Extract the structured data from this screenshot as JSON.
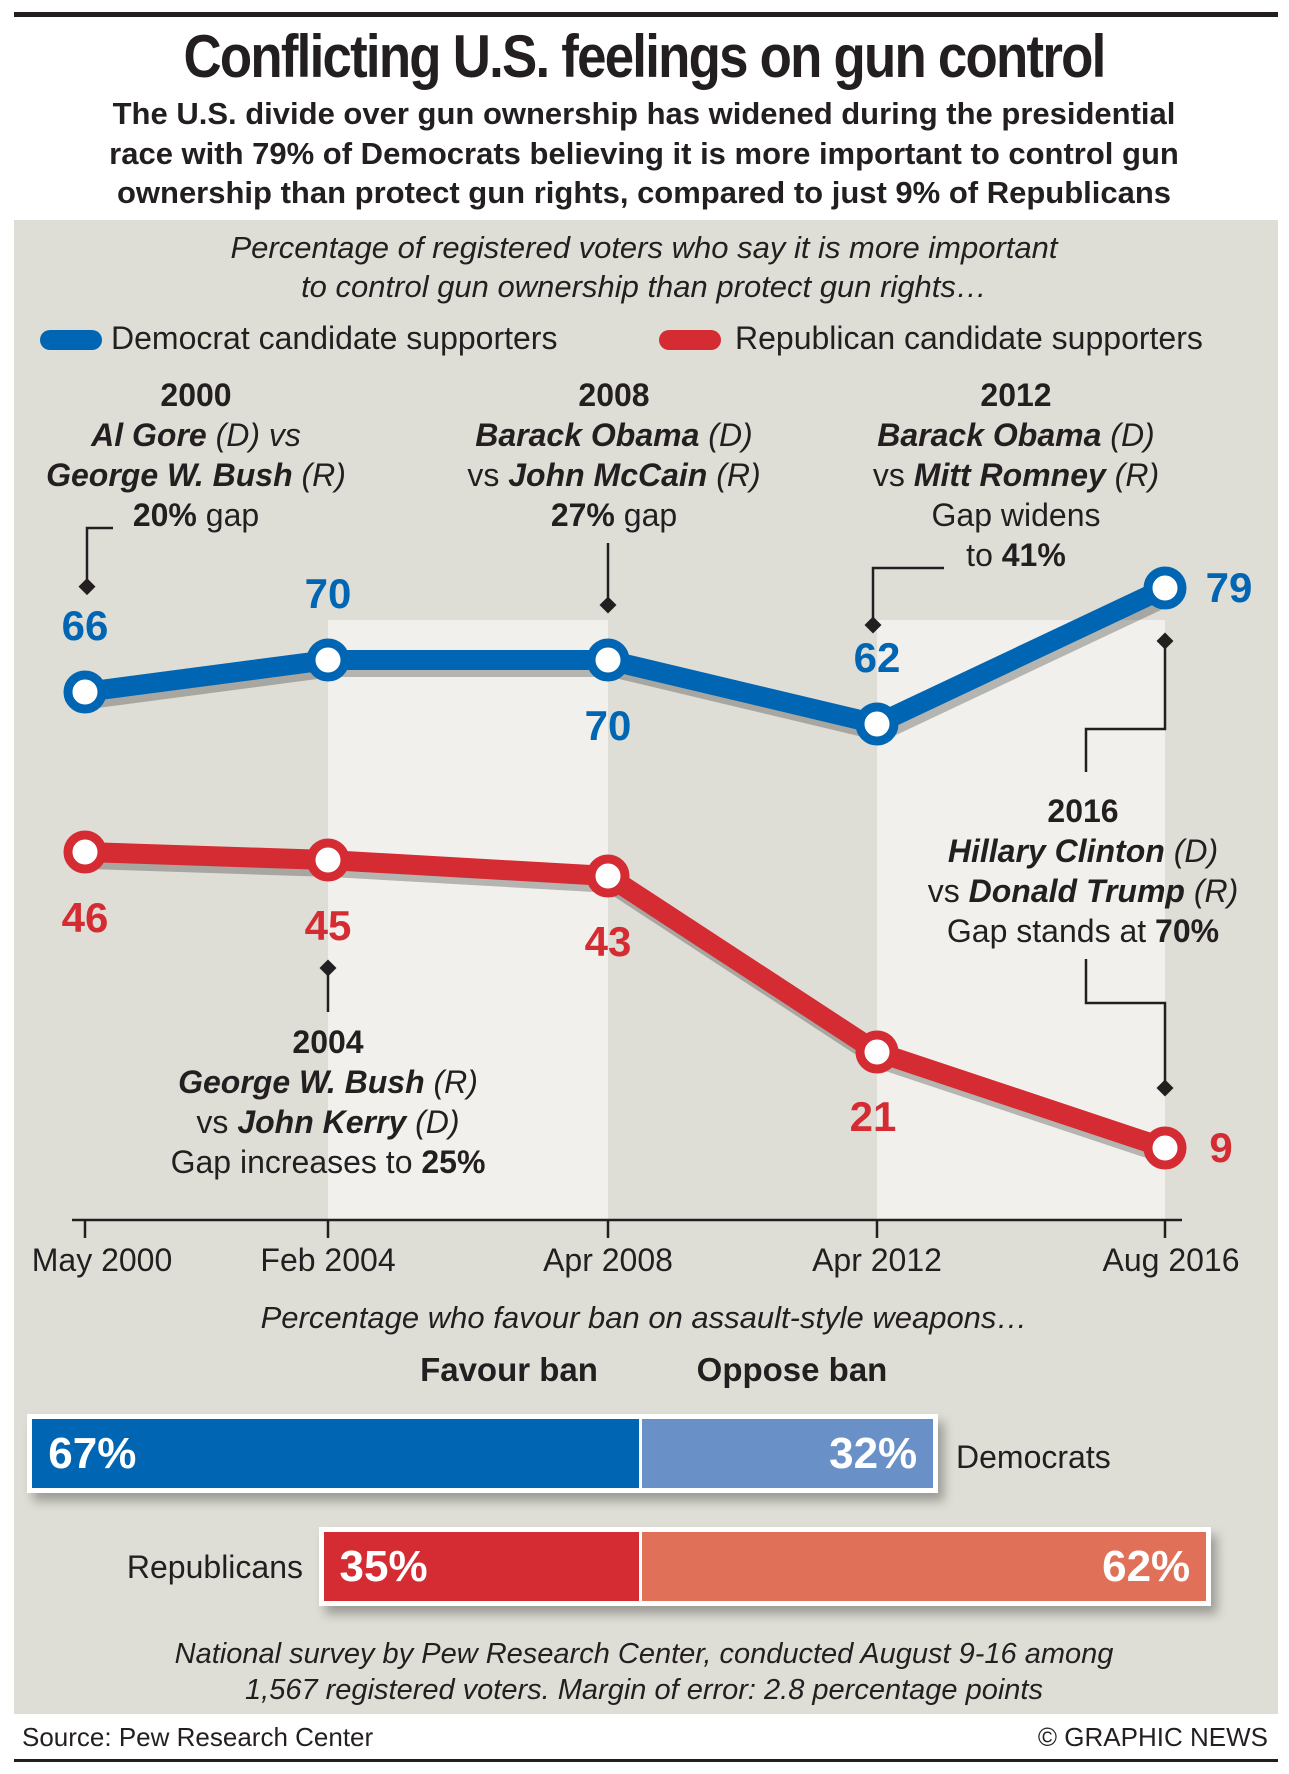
{
  "header": {
    "title": "Conflicting U.S. feelings on gun control",
    "subtitle_lines": [
      "The U.S. divide over gun ownership has widened during the presidential",
      "race with 79% of Democrats believing it is more important to control gun",
      "ownership than protect gun rights, compared to just 9% of Republicans"
    ]
  },
  "chart_data": [
    {
      "type": "line",
      "subtitle_lines": [
        "Percentage of registered voters who say it is more important",
        "to control gun ownership than protect gun rights…"
      ],
      "categories": [
        "May 2000",
        "Feb 2004",
        "Apr 2008",
        "Apr 2012",
        "Aug 2016"
      ],
      "ylim": [
        0,
        100
      ],
      "grid": false,
      "legend_position": "top",
      "series": [
        {
          "name": "Democrat candidate supporters",
          "color": "#0066b3",
          "values": [
            66,
            70,
            70,
            62,
            79
          ],
          "labels": [
            "66",
            "70",
            "70",
            "62",
            "79"
          ]
        },
        {
          "name": "Republican candidate supporters",
          "color": "#d52b32",
          "values": [
            46,
            45,
            43,
            21,
            9
          ],
          "labels": [
            "46",
            "45",
            "43",
            "21",
            "9"
          ]
        }
      ],
      "annotations": [
        {
          "year": "2000",
          "l1": "Al Gore",
          "l1b": " (D) vs",
          "l2": "George W. Bush",
          "l2b": " (R)",
          "l3": "20%",
          "l3b": " gap"
        },
        {
          "year": "2008",
          "l1": "Barack Obama",
          "l1b": " (D)",
          "l2a": "vs ",
          "l2": "John McCain",
          "l2b": " (R)",
          "l3": "27%",
          "l3b": " gap"
        },
        {
          "year": "2012",
          "l1": "Barack Obama",
          "l1b": " (D)",
          "l2a": "vs ",
          "l2": "Mitt Romney",
          "l2b": " (R)",
          "l3a": "Gap widens",
          "l4a": "to ",
          "l4": "41%"
        },
        {
          "year": "2004",
          "l1": "George W. Bush",
          "l1b": " (R)",
          "l2a": "vs ",
          "l2": "John Kerry",
          "l2b": " (D)",
          "l3a": "Gap increases to ",
          "l3": "25%"
        },
        {
          "year": "2016",
          "l1": "Hillary Clinton",
          "l1b": " (D)",
          "l2a": "vs ",
          "l2": "Donald Trump",
          "l2b": " (R)",
          "l3a": "Gap stands at ",
          "l3": "70%"
        }
      ]
    },
    {
      "type": "bar",
      "stacked": true,
      "orientation": "horizontal",
      "title": "Percentage who favour ban on assault-style weapons…",
      "series_headers": [
        "Favour ban",
        "Oppose ban"
      ],
      "rows": [
        {
          "label": "Democrats",
          "favour": 67,
          "oppose": 32,
          "favour_label": "67%",
          "oppose_label": "32%",
          "colors": [
            "#0066b3",
            "#6a90c8"
          ]
        },
        {
          "label": "Republicans",
          "favour": 35,
          "oppose": 62,
          "favour_label": "35%",
          "oppose_label": "62%",
          "colors": [
            "#d52b32",
            "#e07058"
          ]
        }
      ]
    }
  ],
  "footnote_lines": [
    "National survey by Pew Research Center, conducted August 9-16 among",
    "1,567 registered voters. Margin of error: 2.8 percentage points"
  ],
  "footer": {
    "source": "Source: Pew Research Center",
    "credit": "© GRAPHIC NEWS"
  }
}
